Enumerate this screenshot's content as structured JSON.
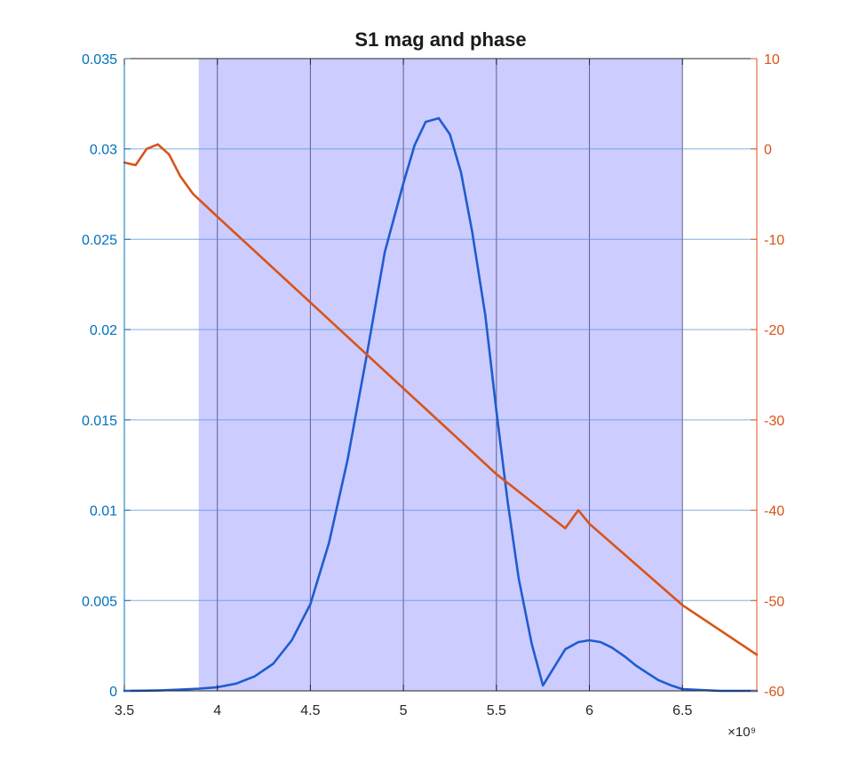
{
  "chart_data": {
    "type": "line",
    "title": "S1 mag and phase",
    "x_exponent_label": "×10⁹",
    "xlim": [
      3.5,
      6.9
    ],
    "x_ticks": [
      3.5,
      4,
      4.5,
      5,
      5.5,
      6,
      6.5
    ],
    "x_tick_labels": [
      "3.5",
      "4",
      "4.5",
      "5",
      "5.5",
      "6",
      "6.5"
    ],
    "left_axis": {
      "ylim": [
        0,
        0.035
      ],
      "ticks": [
        0,
        0.005,
        0.01,
        0.015,
        0.02,
        0.025,
        0.03,
        0.035
      ],
      "tick_labels": [
        "0",
        "0.005",
        "0.01",
        "0.015",
        "0.02",
        "0.025",
        "0.03",
        "0.035"
      ],
      "color": "#0072BD"
    },
    "right_axis": {
      "ylim": [
        -60,
        10
      ],
      "ticks": [
        -60,
        -50,
        -40,
        -30,
        -20,
        -10,
        0,
        10
      ],
      "tick_labels": [
        "-60",
        "-50",
        "-40",
        "-30",
        "-20",
        "-10",
        "0",
        "10"
      ],
      "color": "#D95319"
    },
    "shaded_band": {
      "x_range": [
        3.9,
        6.5
      ],
      "color": "#CCCCFF"
    },
    "grid": true,
    "series": [
      {
        "axis": "left",
        "color": "#1F5CCF",
        "x": [
          3.5,
          3.6,
          3.7,
          3.8,
          3.9,
          4.0,
          4.1,
          4.2,
          4.3,
          4.4,
          4.5,
          4.6,
          4.7,
          4.8,
          4.9,
          5.0,
          5.06,
          5.12,
          5.19,
          5.25,
          5.31,
          5.37,
          5.44,
          5.5,
          5.56,
          5.62,
          5.69,
          5.75,
          5.81,
          5.87,
          5.94,
          6.0,
          6.06,
          6.12,
          6.19,
          6.25,
          6.31,
          6.37,
          6.44,
          6.5,
          6.6,
          6.7,
          6.8,
          6.9
        ],
        "y": [
          0.0,
          1e-05,
          3e-05,
          7e-05,
          0.00012,
          0.0002,
          0.0004,
          0.0008,
          0.0015,
          0.0028,
          0.0048,
          0.0082,
          0.0128,
          0.0184,
          0.0243,
          0.0281,
          0.0302,
          0.0315,
          0.0317,
          0.0308,
          0.0287,
          0.0254,
          0.0208,
          0.0155,
          0.0105,
          0.0062,
          0.0026,
          0.0003,
          0.0013,
          0.0023,
          0.0027,
          0.0028,
          0.0027,
          0.0024,
          0.0019,
          0.0014,
          0.001,
          0.0006,
          0.0003,
          0.0001,
          5e-05,
          0.0,
          0.0,
          0.0
        ]
      },
      {
        "axis": "right",
        "color": "#D95319",
        "x": [
          3.5,
          3.56,
          3.62,
          3.68,
          3.74,
          3.8,
          3.87,
          4.0,
          4.5,
          5.0,
          5.5,
          5.87,
          5.94,
          6.0,
          6.5,
          6.9
        ],
        "y": [
          -1.5,
          -1.8,
          0,
          0.5,
          -0.6,
          -3,
          -5,
          -7.5,
          -17,
          -26.5,
          -36,
          -42,
          -40,
          -41.5,
          -50.5,
          -56
        ]
      }
    ]
  }
}
